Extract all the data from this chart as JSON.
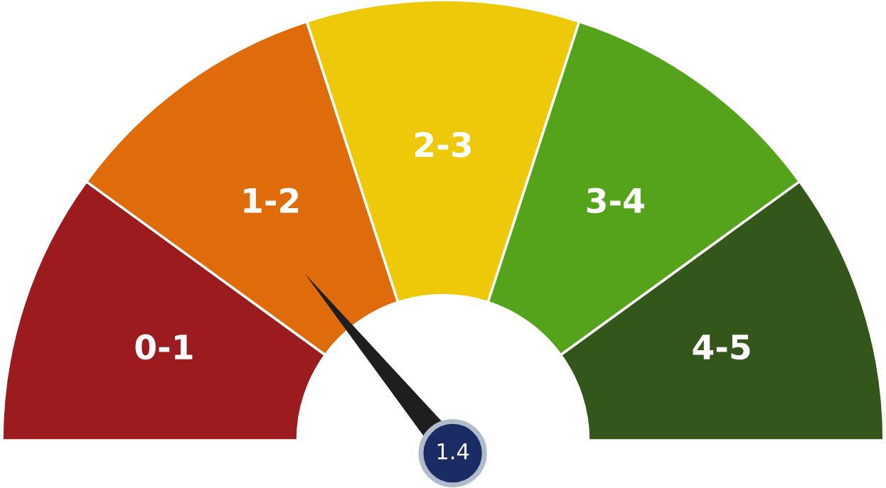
{
  "chart_data": {
    "type": "donut",
    "categories": [
      "0-1",
      "1-2",
      "2-3",
      "3-4",
      "4-5"
    ],
    "values": [
      20,
      20,
      20,
      20,
      20
    ],
    "colors": [
      "#9b1b1e",
      "#e06b0b",
      "#eec909",
      "#55a31a",
      "#33561a"
    ],
    "needle": "1-2",
    "annotations": [
      "1.4"
    ]
  }
}
